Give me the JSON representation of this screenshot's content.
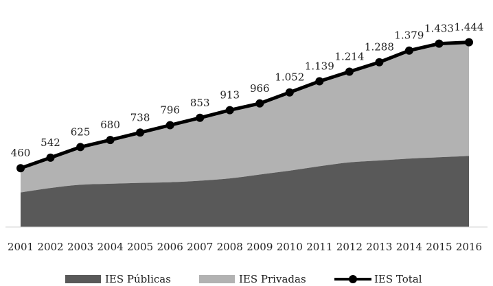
{
  "chart_data": {
    "type": "area",
    "title": "",
    "xlabel": "",
    "ylabel": "",
    "ylim": [
      0,
      1640
    ],
    "grid": false,
    "legend_position": "bottom",
    "categories": [
      "2001",
      "2002",
      "2003",
      "2004",
      "2005",
      "2006",
      "2007",
      "2008",
      "2009",
      "2010",
      "2011",
      "2012",
      "2013",
      "2014",
      "2015",
      "2016"
    ],
    "series": [
      {
        "name": "IES Públicas",
        "kind": "stacked-area",
        "color": "#595959",
        "values": [
          270,
          305,
          330,
          338,
          345,
          350,
          362,
          380,
          410,
          440,
          475,
          505,
          520,
          535,
          545,
          555
        ]
      },
      {
        "name": "IES Privadas",
        "kind": "stacked-area",
        "color": "#b2b2b2",
        "values": [
          190,
          237,
          295,
          342,
          393,
          446,
          491,
          533,
          556,
          612,
          664,
          709,
          768,
          844,
          888,
          889
        ]
      },
      {
        "name": "IES Total",
        "kind": "line-markers",
        "color": "#000000",
        "values": [
          460,
          542,
          625,
          680,
          738,
          796,
          853,
          913,
          966,
          1052,
          1139,
          1214,
          1288,
          1379,
          1433,
          1444
        ],
        "labels": [
          "460",
          "542",
          "625",
          "680",
          "738",
          "796",
          "853",
          "913",
          "966",
          "1.052",
          "1.139",
          "1.214",
          "1.288",
          "1.379",
          "1.433",
          "1.444"
        ]
      }
    ]
  }
}
